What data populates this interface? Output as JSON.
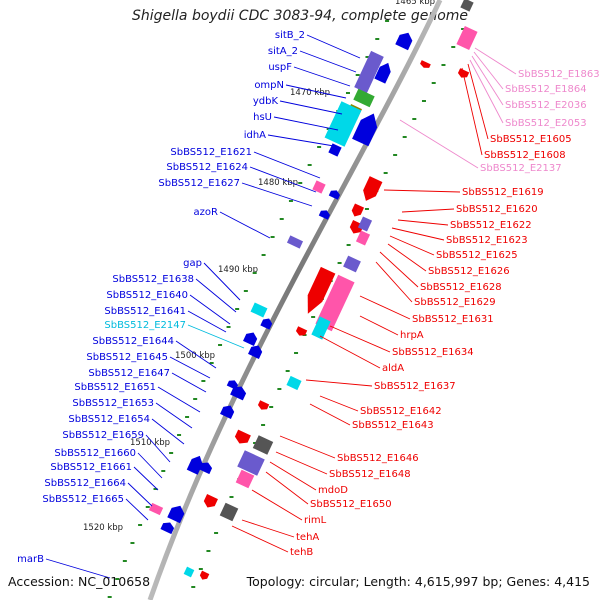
{
  "title": "Shigella boydii CDC 3083-94, complete genome",
  "accession": "Accession: NC_010658",
  "topology": "Topology: circular; Length: 4,615,997 bp; Genes: 4,415",
  "colors": {
    "forward": "#0000dd",
    "reverse": "#ee0000",
    "cyan": "#00d8e8",
    "pink": "#ff55aa",
    "lightpink": "#ee88cc",
    "purple": "#6a5acd",
    "backbone": "#888888",
    "tick": "#228822"
  },
  "kbp_ticks": [
    "1465 kbp",
    "1470 kbp",
    "1480 kbp",
    "1490 kbp",
    "1500 kbp",
    "1510 kbp",
    "1520 kbp"
  ],
  "left_labels": [
    {
      "text": "sitB_2",
      "color": "#0000dd"
    },
    {
      "text": "sitA_2",
      "color": "#0000dd"
    },
    {
      "text": "uspF",
      "color": "#0000dd"
    },
    {
      "text": "ompN",
      "color": "#0000dd"
    },
    {
      "text": "ydbK",
      "color": "#0000dd"
    },
    {
      "text": "hsU",
      "color": "#0000dd"
    },
    {
      "text": "idhA",
      "color": "#0000dd"
    },
    {
      "text": "SbBS512_E1621",
      "color": "#0000dd"
    },
    {
      "text": "SbBS512_E1624",
      "color": "#0000dd"
    },
    {
      "text": "SbBS512_E1627",
      "color": "#0000dd"
    },
    {
      "text": "azoR",
      "color": "#0000dd"
    },
    {
      "text": "gap",
      "color": "#0000dd"
    },
    {
      "text": "SbBS512_E1638",
      "color": "#0000dd"
    },
    {
      "text": "SbBS512_E1640",
      "color": "#0000dd"
    },
    {
      "text": "SbBS512_E1641",
      "color": "#0000dd"
    },
    {
      "text": "SbBS512_E2147",
      "color": "#00bbdd"
    },
    {
      "text": "SbBS512_E1644",
      "color": "#0000dd"
    },
    {
      "text": "SbBS512_E1645",
      "color": "#0000dd"
    },
    {
      "text": "SbBS512_E1647",
      "color": "#0000dd"
    },
    {
      "text": "SbBS512_E1651",
      "color": "#0000dd"
    },
    {
      "text": "SbBS512_E1653",
      "color": "#0000dd"
    },
    {
      "text": "SbBS512_E1654",
      "color": "#0000dd"
    },
    {
      "text": "SbBS512_E1659",
      "color": "#0000dd"
    },
    {
      "text": "SbBS512_E1660",
      "color": "#0000dd"
    },
    {
      "text": "SbBS512_E1661",
      "color": "#0000dd"
    },
    {
      "text": "SbBS512_E1664",
      "color": "#0000dd"
    },
    {
      "text": "SbBS512_E1665",
      "color": "#0000dd"
    },
    {
      "text": "marB",
      "color": "#0000dd"
    }
  ],
  "right_labels": [
    {
      "text": "SbBS512_E1863",
      "color": "#ee88cc"
    },
    {
      "text": "SbBS512_E1864",
      "color": "#ee88cc"
    },
    {
      "text": "SbBS512_E2036",
      "color": "#ee88cc"
    },
    {
      "text": "SbBS512_E2053",
      "color": "#ee88cc"
    },
    {
      "text": "SbBS512_E1605",
      "color": "#ee0000"
    },
    {
      "text": "SbBS512_E1608",
      "color": "#ee0000"
    },
    {
      "text": "SbBS512_E2137",
      "color": "#ee88cc"
    },
    {
      "text": "SbBS512_E1619",
      "color": "#ee0000"
    },
    {
      "text": "SbBS512_E1620",
      "color": "#ee0000"
    },
    {
      "text": "SbBS512_E1622",
      "color": "#ee0000"
    },
    {
      "text": "SbBS512_E1623",
      "color": "#ee0000"
    },
    {
      "text": "SbBS512_E1625",
      "color": "#ee0000"
    },
    {
      "text": "SbBS512_E1626",
      "color": "#ee0000"
    },
    {
      "text": "SbBS512_E1628",
      "color": "#ee0000"
    },
    {
      "text": "SbBS512_E1629",
      "color": "#ee0000"
    },
    {
      "text": "SbBS512_E1631",
      "color": "#ee0000"
    },
    {
      "text": "hrpA",
      "color": "#ee0000"
    },
    {
      "text": "SbBS512_E1634",
      "color": "#ee0000"
    },
    {
      "text": "aldA",
      "color": "#ee0000"
    },
    {
      "text": "SbBS512_E1637",
      "color": "#ee0000"
    },
    {
      "text": "SbBS512_E1642",
      "color": "#ee0000"
    },
    {
      "text": "SbBS512_E1643",
      "color": "#ee0000"
    },
    {
      "text": "SbBS512_E1646",
      "color": "#ee0000"
    },
    {
      "text": "SbBS512_E1648",
      "color": "#ee0000"
    },
    {
      "text": "mdoD",
      "color": "#ee0000"
    },
    {
      "text": "SbBS512_E1650",
      "color": "#ee0000"
    },
    {
      "text": "rimL",
      "color": "#ee0000"
    },
    {
      "text": "tehA",
      "color": "#ee0000"
    },
    {
      "text": "tehB",
      "color": "#ee0000"
    }
  ]
}
